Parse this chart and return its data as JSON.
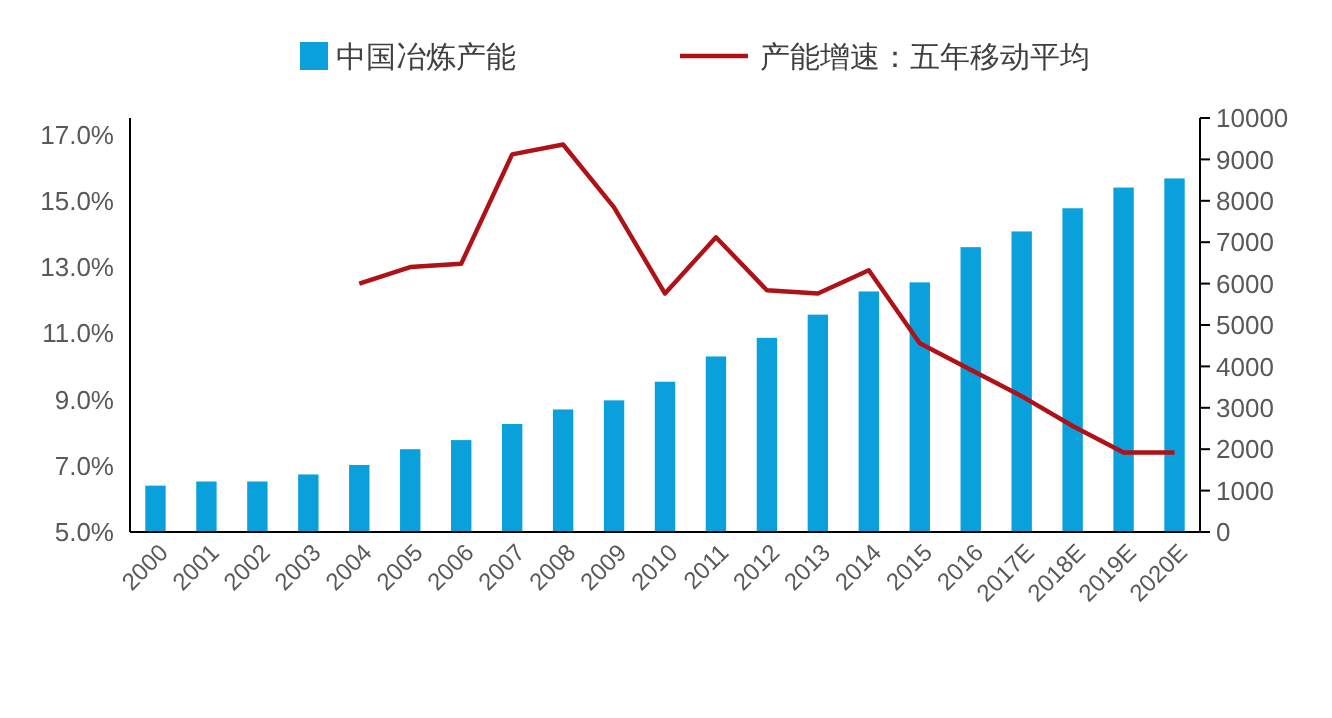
{
  "chart_data": {
    "type": "bar",
    "categories": [
      "2000",
      "2001",
      "2002",
      "2003",
      "2004",
      "2005",
      "2006",
      "2007",
      "2008",
      "2009",
      "2010",
      "2011",
      "2012",
      "2013",
      "2014",
      "2015",
      "2016",
      "2017E",
      "2018E",
      "2019E",
      "2020E"
    ],
    "series": [
      {
        "name": "中国冶炼产能",
        "type": "bar",
        "axis": "y2",
        "color": "#0aa0dc",
        "values": [
          1120,
          1220,
          1220,
          1390,
          1620,
          2000,
          2220,
          2610,
          2960,
          3180,
          3630,
          4240,
          4690,
          5250,
          5810,
          6030,
          6880,
          7260,
          7820,
          8320,
          8540
        ]
      },
      {
        "name": "产能增速：五年移动平均",
        "type": "line",
        "axis": "y",
        "color": "#b01116",
        "values": [
          null,
          null,
          null,
          null,
          12.5,
          13.0,
          13.1,
          16.4,
          16.7,
          14.8,
          12.2,
          13.9,
          12.3,
          12.2,
          12.9,
          10.7,
          9.9,
          9.1,
          8.2,
          7.4,
          7.4
        ]
      }
    ],
    "ylim": [
      5,
      17.5
    ],
    "yticks": [
      {
        "value": 5,
        "label": "5.0%"
      },
      {
        "value": 7,
        "label": "7.0%"
      },
      {
        "value": 9,
        "label": "9.0%"
      },
      {
        "value": 11,
        "label": "11.0%"
      },
      {
        "value": 13,
        "label": "13.0%"
      },
      {
        "value": 15,
        "label": "15.0%"
      },
      {
        "value": 17,
        "label": "17.0%"
      }
    ],
    "y2lim": [
      0,
      10000
    ],
    "y2ticks": [
      0,
      1000,
      2000,
      3000,
      4000,
      5000,
      6000,
      7000,
      8000,
      9000,
      10000
    ],
    "legend": "top",
    "grid": false,
    "marker": "none",
    "line_style": "solid"
  }
}
